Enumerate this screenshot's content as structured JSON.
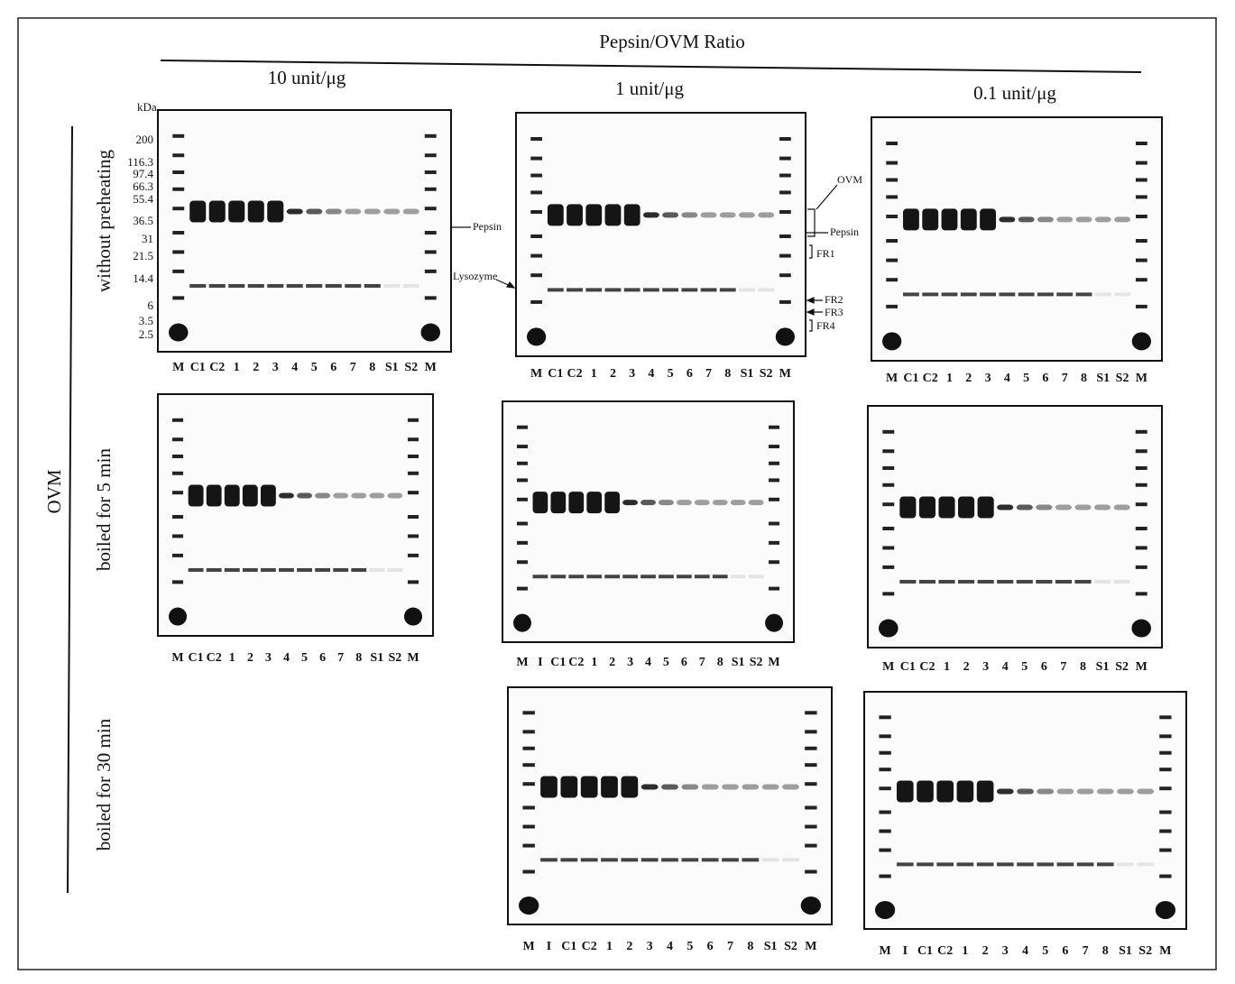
{
  "header": {
    "title": "Pepsin/OVM  Ratio",
    "columns": [
      "10 unit/μg",
      "1 unit/μg",
      "0.1 unit/μg"
    ]
  },
  "side_label": "OVM",
  "rows": [
    "without preheating",
    "boiled for 5 min",
    "boiled for 30 min"
  ],
  "axis": {
    "unit": "kDa",
    "markers": [
      "200",
      "116.3",
      "97.4",
      "66.3",
      "55.4",
      "36.5",
      "31",
      "21.5",
      "14.4",
      "6",
      "3.5",
      "2.5"
    ]
  },
  "annotations": {
    "pepsin_1": "Pepsin",
    "lysozyme": "Lysozyme",
    "pepsin_2": "Pepsin",
    "ovm": "OVM",
    "fr1": "FR1",
    "fr2": "FR2",
    "fr3": "FR3",
    "fr4": "FR4"
  },
  "gels": [
    {
      "lanes": [
        "M",
        "C1",
        "C2",
        "1",
        "2",
        "3",
        "4",
        "5",
        "6",
        "7",
        "8",
        "S1",
        "S2",
        "M"
      ]
    },
    {
      "lanes": [
        "M",
        "C1",
        "C2",
        "1",
        "2",
        "3",
        "4",
        "5",
        "6",
        "7",
        "8",
        "S1",
        "S2",
        "M"
      ]
    },
    {
      "lanes": [
        "M",
        "C1",
        "C2",
        "1",
        "2",
        "3",
        "4",
        "5",
        "6",
        "7",
        "8",
        "S1",
        "S2",
        "M"
      ]
    },
    {
      "lanes": [
        "M",
        "C1",
        "C2",
        "1",
        "2",
        "3",
        "4",
        "5",
        "6",
        "7",
        "8",
        "S1",
        "S2",
        "M"
      ]
    },
    {
      "lanes": [
        "M",
        "I",
        "C1",
        "C2",
        "1",
        "2",
        "3",
        "4",
        "5",
        "6",
        "7",
        "8",
        "S1",
        "S2",
        "M"
      ]
    },
    {
      "lanes": [
        "M",
        "C1",
        "C2",
        "1",
        "2",
        "3",
        "4",
        "5",
        "6",
        "7",
        "8",
        "S1",
        "S2",
        "M"
      ]
    },
    {
      "lanes": [
        "M",
        "I",
        "C1",
        "C2",
        "1",
        "2",
        "3",
        "4",
        "5",
        "6",
        "7",
        "8",
        "S1",
        "S2",
        "M"
      ]
    },
    {
      "lanes": [
        "M",
        "I",
        "C1",
        "C2",
        "1",
        "2",
        "3",
        "4",
        "5",
        "6",
        "7",
        "8",
        "S1",
        "S2",
        "M"
      ]
    }
  ]
}
